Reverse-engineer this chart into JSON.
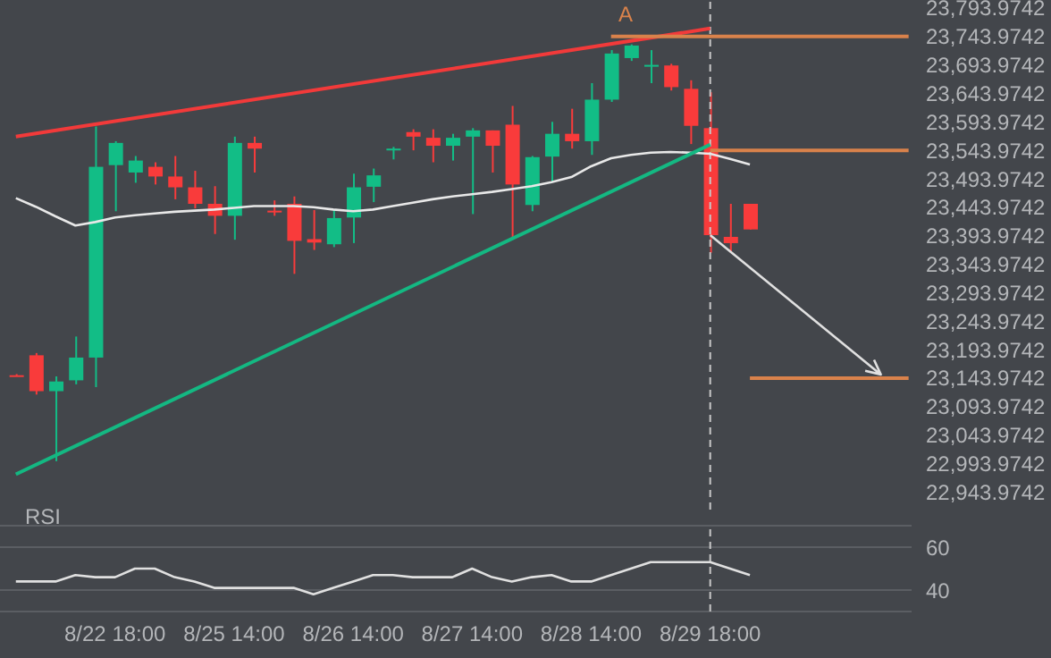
{
  "chart_data": [
    {
      "type": "candlestick",
      "categories": [
        null,
        null,
        null,
        null,
        null,
        "8/22 18:00",
        null,
        null,
        null,
        null,
        null,
        "8/25 14:00",
        null,
        null,
        null,
        null,
        null,
        "8/26 14:00",
        null,
        null,
        null,
        null,
        null,
        "8/27 14:00",
        null,
        null,
        null,
        null,
        null,
        "8/28 14:00",
        null,
        null,
        null,
        null,
        null,
        "8/29 18:00",
        null,
        null,
        null,
        null,
        null,
        null,
        null,
        null,
        null,
        null
      ],
      "tick_labels": "y",
      "ylim": [
        22913,
        23808
      ],
      "yticks": [
        {
          "value": 22943.9742,
          "label": "22,943.9742"
        },
        {
          "value": 22993.9742,
          "label": "22,993.9742"
        },
        {
          "value": 23043.9742,
          "label": "23,043.9742"
        },
        {
          "value": 23093.9742,
          "label": "23,093.9742"
        },
        {
          "value": 23143.9742,
          "label": "23,143.9742"
        },
        {
          "value": 23193.9742,
          "label": "23,193.9742"
        },
        {
          "value": 23243.9742,
          "label": "23,243.9742"
        },
        {
          "value": 23293.9742,
          "label": "23,293.9742"
        },
        {
          "value": 23343.9742,
          "label": "23,343.9742"
        },
        {
          "value": 23393.9742,
          "label": "23,393.9742"
        },
        {
          "value": 23443.9742,
          "label": "23,443.9742"
        },
        {
          "value": 23493.9742,
          "label": "23,493.9742"
        },
        {
          "value": 23543.9742,
          "label": "23,543.9742"
        },
        {
          "value": 23593.9742,
          "label": "23,593.9742"
        },
        {
          "value": 23643.9742,
          "label": "23,643.9742"
        },
        {
          "value": 23693.9742,
          "label": "23,693.9742"
        },
        {
          "value": 23743.9742,
          "label": "23,743.9742"
        },
        {
          "value": 23793.9742,
          "label": "23,793.9742"
        }
      ],
      "ohlc": [
        [
          23149,
          23151,
          23147,
          23149
        ],
        [
          23184,
          23188,
          23115,
          23121
        ],
        [
          23121,
          23147,
          22998,
          23138
        ],
        [
          23140,
          23217,
          23133,
          23180
        ],
        [
          23180,
          23586,
          23128,
          23515
        ],
        [
          23518,
          23560,
          23437,
          23557
        ],
        [
          23505,
          23534,
          23487,
          23526
        ],
        [
          23515,
          23523,
          23484,
          23498
        ],
        [
          23498,
          23534,
          23458,
          23479
        ],
        [
          23479,
          23508,
          23442,
          23450
        ],
        [
          23450,
          23481,
          23397,
          23429
        ],
        [
          23429,
          23568,
          23387,
          23557
        ],
        [
          23557,
          23568,
          23505,
          23547
        ],
        [
          23438,
          23456,
          23429,
          23437
        ],
        [
          23450,
          23463,
          23327,
          23385
        ],
        [
          23388,
          23439,
          23369,
          23382
        ],
        [
          23379,
          23440,
          23374,
          23425
        ],
        [
          23426,
          23503,
          23381,
          23479
        ],
        [
          23480,
          23512,
          23453,
          23500
        ],
        [
          23545,
          23550,
          23528,
          23547
        ],
        [
          23576,
          23581,
          23544,
          23568
        ],
        [
          23566,
          23581,
          23523,
          23552
        ],
        [
          23552,
          23573,
          23526,
          23566
        ],
        [
          23568,
          23583,
          23432,
          23579
        ],
        [
          23579,
          23579,
          23505,
          23552
        ],
        [
          23589,
          23622,
          23390,
          23484
        ],
        [
          23448,
          23534,
          23437,
          23532
        ],
        [
          23533,
          23594,
          23489,
          23573
        ],
        [
          23573,
          23617,
          23547,
          23560
        ],
        [
          23560,
          23662,
          23536,
          23633
        ],
        [
          23633,
          23720,
          23629,
          23714
        ],
        [
          23706,
          23730,
          23701,
          23728
        ],
        [
          23692,
          23720,
          23662,
          23694
        ],
        [
          23693,
          23696,
          23649,
          23655
        ],
        [
          23652,
          23667,
          23555,
          23587
        ],
        [
          23583,
          23646,
          23364,
          23395
        ],
        [
          23392,
          23450,
          23364,
          23381
        ],
        [
          23450,
          23450,
          23405,
          23405
        ],
        null,
        null,
        null,
        null,
        null,
        null,
        null,
        null
      ],
      "colors": [
        "#f93b3b",
        "#f93b3b",
        "#12bd86",
        "#12bd86",
        "#12bd86",
        "#12bd86",
        "#12bd86",
        "#f93b3b",
        "#f93b3b",
        "#f93b3b",
        "#f93b3b",
        "#12bd86",
        "#f93b3b",
        "#f93b3b",
        "#f93b3b",
        "#f93b3b",
        "#12bd86",
        "#12bd86",
        "#12bd86",
        "#12bd86",
        "#f93b3b",
        "#f93b3b",
        "#12bd86",
        "#12bd86",
        "#f93b3b",
        "#f93b3b",
        "#12bd86",
        "#12bd86",
        "#f93b3b",
        "#12bd86",
        "#12bd86",
        "#12bd86",
        "#12bd86",
        "#f93b3b",
        "#f93b3b",
        "#f93b3b",
        "#f93b3b",
        "#f93b3b",
        null,
        null,
        null,
        null,
        null,
        null,
        null,
        null
      ],
      "series": [
        {
          "type": "line",
          "color": "#e8e8e8",
          "values": [
            23460,
            23445,
            23428,
            23412,
            23418,
            23426,
            23430,
            23433,
            23436,
            23438,
            23440,
            23443,
            23446,
            23446,
            23446,
            23444,
            23440,
            23437,
            23440,
            23446,
            23452,
            23458,
            23463,
            23467,
            23471,
            23476,
            23481,
            23488,
            23497,
            23516,
            23530,
            23536,
            23540,
            23541,
            23540,
            23538,
            23529,
            23519,
            null,
            null,
            null,
            null,
            null,
            null,
            null,
            null
          ]
        },
        {
          "type": "line",
          "color": "#f23a3a",
          "values": [
            23568,
            null,
            null,
            null,
            null,
            null,
            null,
            null,
            null,
            null,
            null,
            null,
            null,
            null,
            null,
            null,
            null,
            null,
            null,
            null,
            null,
            null,
            null,
            null,
            null,
            null,
            null,
            null,
            null,
            null,
            null,
            null,
            null,
            null,
            null,
            23758,
            null,
            null,
            null,
            null,
            null,
            null,
            null,
            null,
            null,
            null
          ]
        },
        {
          "type": "line",
          "color": "#14b882",
          "values": [
            22975,
            null,
            null,
            null,
            null,
            null,
            null,
            null,
            null,
            null,
            null,
            null,
            null,
            null,
            null,
            null,
            null,
            null,
            null,
            null,
            null,
            null,
            null,
            null,
            null,
            null,
            null,
            null,
            null,
            null,
            null,
            null,
            null,
            null,
            null,
            23554,
            null,
            null,
            null,
            null,
            null,
            null,
            null,
            null,
            null,
            null
          ]
        },
        {
          "type": "line",
          "color": "#d9824b",
          "values": [
            null,
            null,
            null,
            null,
            null,
            null,
            null,
            null,
            null,
            null,
            null,
            null,
            null,
            null,
            null,
            null,
            null,
            null,
            null,
            null,
            null,
            null,
            null,
            null,
            null,
            null,
            null,
            null,
            null,
            null,
            23744,
            null,
            null,
            null,
            null,
            null,
            null,
            null,
            null,
            null,
            null,
            null,
            null,
            null,
            null,
            23744
          ]
        },
        {
          "type": "line",
          "color": "#d9824b",
          "values": [
            null,
            null,
            null,
            null,
            null,
            null,
            null,
            null,
            null,
            null,
            null,
            null,
            null,
            null,
            null,
            null,
            null,
            null,
            null,
            null,
            null,
            null,
            null,
            null,
            null,
            null,
            null,
            null,
            null,
            null,
            null,
            null,
            null,
            null,
            null,
            23544,
            null,
            null,
            null,
            null,
            null,
            null,
            null,
            null,
            null,
            23544
          ]
        },
        {
          "type": "line",
          "color": "#d9824b",
          "values": [
            null,
            null,
            null,
            null,
            null,
            null,
            null,
            null,
            null,
            null,
            null,
            null,
            null,
            null,
            null,
            null,
            null,
            null,
            null,
            null,
            null,
            null,
            null,
            null,
            null,
            null,
            null,
            null,
            null,
            null,
            null,
            null,
            null,
            null,
            null,
            null,
            null,
            23144,
            null,
            null,
            null,
            null,
            null,
            null,
            null,
            23144
          ]
        }
      ],
      "ref_lines": [
        {
          "axis": "x",
          "value": "8/29 18:00",
          "color": "#c8c8c8",
          "line_style": "dashed"
        }
      ],
      "annotations": [
        "A"
      ]
    },
    {
      "type": "line",
      "title": "RSI",
      "categories": [
        null,
        null,
        null,
        null,
        null,
        "8/22 18:00",
        null,
        null,
        null,
        null,
        null,
        "8/25 14:00",
        null,
        null,
        null,
        null,
        null,
        "8/26 14:00",
        null,
        null,
        null,
        null,
        null,
        "8/27 14:00",
        null,
        null,
        null,
        null,
        null,
        "8/28 14:00",
        null,
        null,
        null,
        null,
        null,
        "8/29 18:00",
        null,
        null,
        null,
        null,
        null,
        null,
        null,
        null,
        null,
        null
      ],
      "ylim": [
        30,
        70
      ],
      "yticks": [
        40,
        60
      ],
      "grid": "y",
      "color": "#e0e0e0",
      "values": [
        44,
        44,
        44,
        47,
        46,
        46,
        50,
        50,
        46,
        44,
        41,
        41,
        41,
        41,
        41,
        38,
        41,
        44,
        47,
        47,
        46,
        46,
        46,
        50,
        46,
        44,
        46,
        47,
        44,
        44,
        47,
        50,
        53,
        53,
        53,
        53,
        50,
        47,
        null,
        null,
        null,
        null,
        null,
        null,
        null,
        null
      ],
      "ref_lines": [
        {
          "axis": "x",
          "value": "8/29 18:00",
          "color": "#c8c8c8",
          "line_style": "dashed"
        }
      ]
    }
  ]
}
